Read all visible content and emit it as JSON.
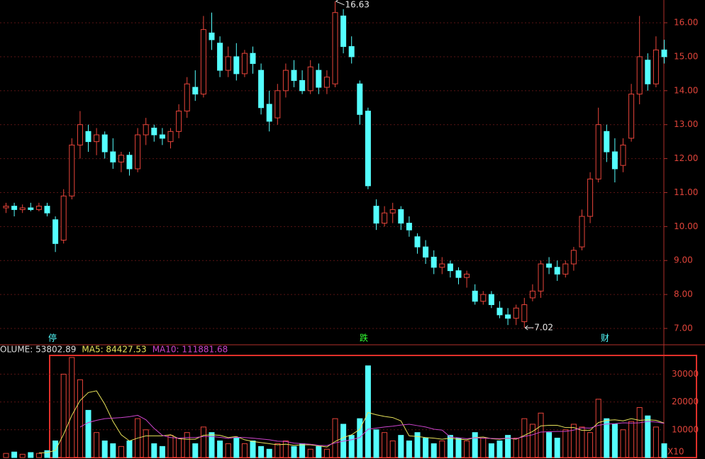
{
  "chart_data": [
    {
      "type": "candlestick",
      "up_color": "#e8443a",
      "down_color": "#54ffff",
      "ylim": [
        6.54,
        16.67
      ],
      "yticks": [
        {
          "value": 7,
          "label": "7.00"
        },
        {
          "value": 8,
          "label": "8.00"
        },
        {
          "value": 9,
          "label": "9.00"
        },
        {
          "value": 10,
          "label": "10.00"
        },
        {
          "value": 11,
          "label": "11.00"
        },
        {
          "value": 12,
          "label": "12.00"
        },
        {
          "value": 13,
          "label": "13.00"
        },
        {
          "value": 14,
          "label": "14.00"
        },
        {
          "value": 15,
          "label": "15.00"
        },
        {
          "value": 16,
          "label": "16.00"
        }
      ],
      "grid": true,
      "max_label": 16.63,
      "min_label": 7.02,
      "annotations": [
        "停",
        "跌",
        "财"
      ],
      "ohlc": [
        [
          10.55,
          10.7,
          10.4,
          10.6
        ],
        [
          10.6,
          10.7,
          10.3,
          10.5
        ],
        [
          10.5,
          10.65,
          10.4,
          10.55
        ],
        [
          10.55,
          10.7,
          10.45,
          10.5
        ],
        [
          10.5,
          10.7,
          10.45,
          10.6
        ],
        [
          10.6,
          10.7,
          10.3,
          10.4
        ],
        [
          10.2,
          10.3,
          9.25,
          9.5
        ],
        [
          9.6,
          11.1,
          9.5,
          10.9
        ],
        [
          10.9,
          12.6,
          10.8,
          12.4
        ],
        [
          12.4,
          13.4,
          12.0,
          13.0
        ],
        [
          12.8,
          13.0,
          12.2,
          12.5
        ],
        [
          12.5,
          12.9,
          12.1,
          12.7
        ],
        [
          12.7,
          12.8,
          12.0,
          12.2
        ],
        [
          12.2,
          12.6,
          11.7,
          11.9
        ],
        [
          11.9,
          12.2,
          11.6,
          12.1
        ],
        [
          12.1,
          12.2,
          11.5,
          11.7
        ],
        [
          11.7,
          12.9,
          11.6,
          12.7
        ],
        [
          12.7,
          13.2,
          12.4,
          13.0
        ],
        [
          12.9,
          13.0,
          12.5,
          12.7
        ],
        [
          12.7,
          12.9,
          12.4,
          12.6
        ],
        [
          12.5,
          12.9,
          12.3,
          12.8
        ],
        [
          12.8,
          13.6,
          12.6,
          13.4
        ],
        [
          13.4,
          14.4,
          13.2,
          14.2
        ],
        [
          14.1,
          14.6,
          13.7,
          13.9
        ],
        [
          13.9,
          16.2,
          13.8,
          15.8
        ],
        [
          15.7,
          16.3,
          15.2,
          15.5
        ],
        [
          15.4,
          15.6,
          14.4,
          14.6
        ],
        [
          14.6,
          15.3,
          14.4,
          15.0
        ],
        [
          15.0,
          15.4,
          14.3,
          14.5
        ],
        [
          14.5,
          15.2,
          14.4,
          15.1
        ],
        [
          15.1,
          15.3,
          14.5,
          14.8
        ],
        [
          14.6,
          14.8,
          13.3,
          13.5
        ],
        [
          13.6,
          14.0,
          12.8,
          13.1
        ],
        [
          13.2,
          14.2,
          13.0,
          14.0
        ],
        [
          14.0,
          14.8,
          13.8,
          14.6
        ],
        [
          14.6,
          14.9,
          14.1,
          14.3
        ],
        [
          14.3,
          14.6,
          13.9,
          14.0
        ],
        [
          14.0,
          14.9,
          13.9,
          14.7
        ],
        [
          14.6,
          14.8,
          13.9,
          14.1
        ],
        [
          14.1,
          14.6,
          13.9,
          14.4
        ],
        [
          14.2,
          16.63,
          14.1,
          16.3
        ],
        [
          16.2,
          16.4,
          15.1,
          15.3
        ],
        [
          15.3,
          15.6,
          14.8,
          15.0
        ],
        [
          14.2,
          14.3,
          13.0,
          13.3
        ],
        [
          13.4,
          13.5,
          11.1,
          11.2
        ],
        [
          10.6,
          10.8,
          9.9,
          10.1
        ],
        [
          10.1,
          10.6,
          10.0,
          10.4
        ],
        [
          10.4,
          10.7,
          10.1,
          10.5
        ],
        [
          10.5,
          10.6,
          9.9,
          10.1
        ],
        [
          10.1,
          10.3,
          9.7,
          9.9
        ],
        [
          9.7,
          9.8,
          9.2,
          9.4
        ],
        [
          9.4,
          9.6,
          8.9,
          9.1
        ],
        [
          9.1,
          9.3,
          8.6,
          8.8
        ],
        [
          8.8,
          9.1,
          8.6,
          8.9
        ],
        [
          8.9,
          9.0,
          8.5,
          8.7
        ],
        [
          8.7,
          8.8,
          8.3,
          8.5
        ],
        [
          8.5,
          8.7,
          8.2,
          8.6
        ],
        [
          8.1,
          8.3,
          7.7,
          7.8
        ],
        [
          7.8,
          8.1,
          7.7,
          8.0
        ],
        [
          8.0,
          8.1,
          7.6,
          7.7
        ],
        [
          7.6,
          7.8,
          7.3,
          7.4
        ],
        [
          7.4,
          7.6,
          7.1,
          7.3
        ],
        [
          7.3,
          7.7,
          7.1,
          7.6
        ],
        [
          7.2,
          7.9,
          7.02,
          7.7
        ],
        [
          7.9,
          8.3,
          7.8,
          8.1
        ],
        [
          8.1,
          9.0,
          7.9,
          8.9
        ],
        [
          8.9,
          9.1,
          8.6,
          8.8
        ],
        [
          8.8,
          9.0,
          8.4,
          8.6
        ],
        [
          8.6,
          9.0,
          8.5,
          8.9
        ],
        [
          8.9,
          9.4,
          8.7,
          9.3
        ],
        [
          9.4,
          10.5,
          9.3,
          10.3
        ],
        [
          10.3,
          11.6,
          10.1,
          11.4
        ],
        [
          11.4,
          13.5,
          11.3,
          13.0
        ],
        [
          12.8,
          13.0,
          11.9,
          12.2
        ],
        [
          12.2,
          12.6,
          11.3,
          11.7
        ],
        [
          11.8,
          12.6,
          11.6,
          12.4
        ],
        [
          12.6,
          14.2,
          12.5,
          13.9
        ],
        [
          13.9,
          16.2,
          13.6,
          15.0
        ],
        [
          14.9,
          15.1,
          14.0,
          14.2
        ],
        [
          14.2,
          15.6,
          14.1,
          15.2
        ],
        [
          15.2,
          15.5,
          14.8,
          15.0
        ]
      ]
    },
    {
      "type": "volume",
      "ylim": [
        0,
        37000
      ],
      "yticks": [
        10000,
        20000,
        30000
      ],
      "unit_label": "X10",
      "series": [
        {
          "name": "OLUME: 53802.89",
          "color": "#dddddd",
          "values": [
            1500,
            2000,
            1200,
            1800,
            1500,
            2500,
            6000,
            30000,
            36000,
            28000,
            17000,
            9000,
            6000,
            5000,
            4000,
            6000,
            14000,
            10000,
            5000,
            4000,
            8000,
            7000,
            9000,
            5000,
            11000,
            9000,
            6000,
            5000,
            7000,
            5000,
            6000,
            4000,
            3000,
            5000,
            6000,
            4000,
            5000,
            3000,
            4000,
            3000,
            14000,
            12000,
            8000,
            14000,
            33000,
            10000,
            9000,
            6000,
            8000,
            6000,
            9000,
            7000,
            5000,
            6000,
            8000,
            7000,
            6000,
            9000,
            7000,
            5000,
            6000,
            8000,
            7000,
            14000,
            12000,
            16000,
            9000,
            7000,
            10000,
            12000,
            11000,
            9000,
            21000,
            14000,
            12000,
            10000,
            13000,
            18000,
            15000,
            11000,
            5000
          ]
        },
        {
          "name": "MA5: 84427.53",
          "color": "#e8e25a",
          "values": [
            null,
            null,
            null,
            null,
            1700,
            1800,
            2600,
            8400,
            15200,
            20500,
            23400,
            24000,
            19200,
            13000,
            8200,
            6000,
            7000,
            7800,
            7800,
            7800,
            8200,
            6800,
            6600,
            6600,
            8000,
            8200,
            8000,
            7200,
            7600,
            6400,
            5800,
            5400,
            5000,
            4600,
            4800,
            4400,
            4600,
            4600,
            4200,
            3800,
            5800,
            7200,
            8200,
            10200,
            16200,
            15400,
            14800,
            14400,
            13200,
            7800,
            7600,
            7200,
            7000,
            6600,
            7000,
            6600,
            6400,
            7200,
            7400,
            6800,
            6600,
            7000,
            6600,
            8000,
            9400,
            11400,
            11600,
            11600,
            10800,
            10800,
            9800,
            9800,
            12600,
            13400,
            13600,
            13200,
            14000,
            13400,
            13600,
            13400,
            12400
          ]
        },
        {
          "name": "MA10: 111881.68",
          "color": "#cc44cc",
          "values": [
            null,
            null,
            null,
            null,
            null,
            null,
            null,
            null,
            null,
            11000,
            12600,
            13400,
            14000,
            14200,
            14400,
            14700,
            15200,
            13600,
            10500,
            8000,
            7200,
            7000,
            7200,
            7200,
            7600,
            7600,
            7300,
            6900,
            7300,
            7200,
            7000,
            6700,
            6400,
            5900,
            5800,
            5200,
            5000,
            4800,
            4400,
            4300,
            5300,
            5900,
            6400,
            7200,
            10200,
            10600,
            11000,
            11300,
            11700,
            12000,
            11500,
            11000,
            10200,
            9900,
            7400,
            7100,
            6800,
            7100,
            7000,
            6900,
            6800,
            7000,
            6800,
            7600,
            8200,
            9200,
            9300,
            9400,
            9400,
            9900,
            10700,
            10600,
            11600,
            12100,
            12200,
            12500,
            12400,
            12500,
            13000,
            12800,
            12300
          ]
        }
      ]
    }
  ]
}
